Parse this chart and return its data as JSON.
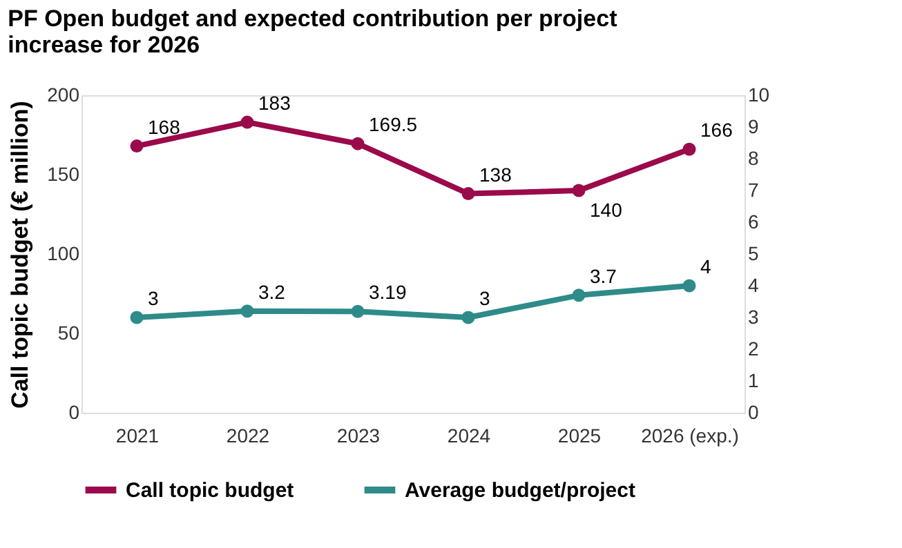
{
  "chart_data": {
    "type": "line",
    "title": "PF Open budget and expected contribution per project increase for 2026",
    "ylabel": "Call topic budget (€ million)",
    "categories": [
      "2021",
      "2022",
      "2023",
      "2024",
      "2025",
      "2026 (exp.)"
    ],
    "series": [
      {
        "name": "Call topic budget",
        "color": "#9b0a4a",
        "values": [
          168,
          183,
          169.5,
          138,
          140,
          166
        ]
      },
      {
        "name": "Average budget/project",
        "color": "#2e8b89",
        "axis": "y2",
        "values": [
          3,
          3.2,
          3.19,
          3,
          3.7,
          4
        ]
      }
    ],
    "ylim": [
      0,
      200
    ],
    "yticks": [
      0,
      50,
      100,
      150,
      200
    ],
    "y2lim": [
      0,
      10
    ],
    "y2ticks": [
      0,
      1,
      2,
      3,
      4,
      5,
      6,
      7,
      8,
      9,
      10
    ],
    "data_labels": true,
    "grid": false,
    "legend": "bottom",
    "marker": "circle",
    "line_style": "solid"
  }
}
